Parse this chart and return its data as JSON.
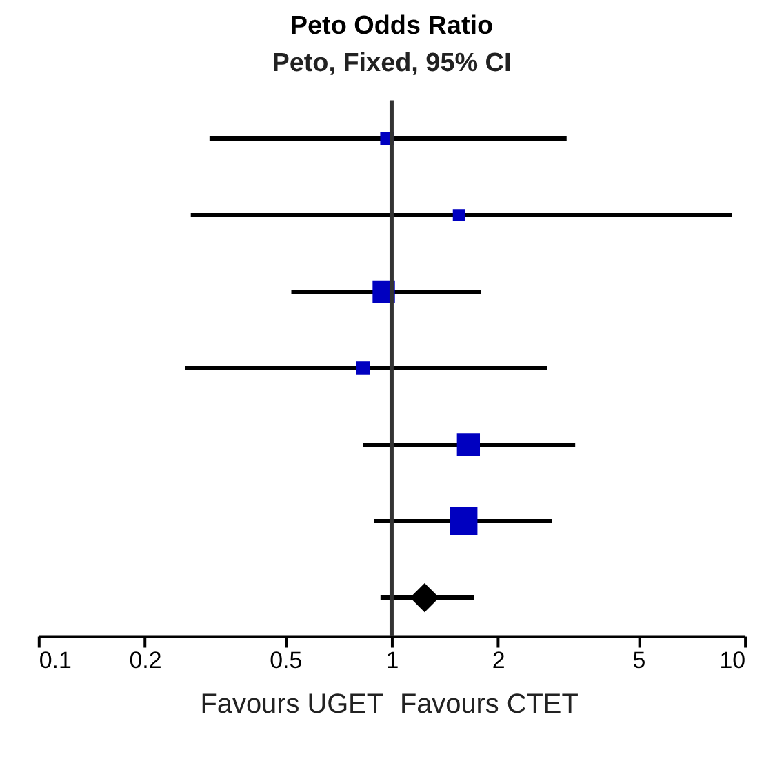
{
  "chart_data": {
    "type": "bubble",
    "orientation": "horizontal",
    "title": "Peto Odds Ratio",
    "subtitle": "Peto, Fixed, 95% CI",
    "categories": [
      null,
      null,
      null,
      null,
      null,
      null,
      null
    ],
    "series": [
      {
        "color": "#0000c0",
        "marker": "square",
        "values": [
          0.97,
          1.55,
          0.95,
          0.83,
          1.65,
          1.6,
          null
        ],
        "errors": [
          [
            0.305,
            3.13
          ],
          [
            0.27,
            9.2
          ],
          [
            0.52,
            1.79
          ],
          [
            0.26,
            2.76
          ],
          [
            0.83,
            3.31
          ],
          [
            0.89,
            2.84
          ],
          null
        ],
        "sizes": [
          0.24,
          0.19,
          0.66,
          0.24,
          0.7,
          1,
          null
        ]
      },
      {
        "color": "#000000",
        "marker": "diamond",
        "values": [
          null,
          null,
          null,
          null,
          null,
          null,
          1.24
        ],
        "errors": [
          null,
          null,
          null,
          null,
          null,
          null,
          [
            0.93,
            1.71
          ]
        ]
      }
    ],
    "xlim": [
      0.1,
      10
    ],
    "xticks": [
      0.1,
      0.2,
      0.5,
      1,
      2,
      5,
      10
    ],
    "log": "x",
    "tick_labels": "x",
    "grid": false,
    "ref_lines": [
      {
        "axis": "x",
        "value": 1,
        "color": "#333333"
      }
    ],
    "annotations": [
      "Favours UGET",
      "Favours CTET"
    ]
  }
}
